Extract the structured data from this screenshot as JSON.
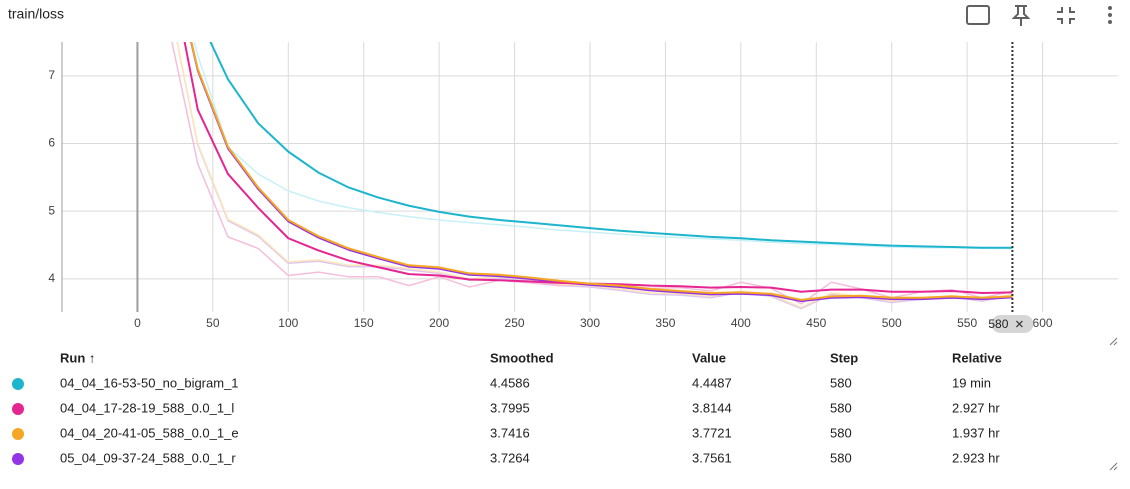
{
  "title": "train/loss",
  "chart_data": {
    "type": "line",
    "x": [
      20,
      40,
      60,
      80,
      100,
      120,
      140,
      160,
      180,
      200,
      220,
      240,
      260,
      280,
      300,
      320,
      340,
      360,
      380,
      400,
      420,
      440,
      460,
      480,
      500,
      520,
      540,
      560,
      580
    ],
    "xlim": [
      -50,
      650
    ],
    "xticks": [
      0,
      50,
      100,
      150,
      200,
      250,
      300,
      350,
      400,
      450,
      500,
      550,
      600
    ],
    "ylim": [
      3.51,
      7.5
    ],
    "yticks": [
      4,
      5,
      6,
      7
    ],
    "grid": true,
    "hover_step": 580,
    "series": [
      {
        "name": "05_04_09-37-24_588_0.0_1_r",
        "color": "#9334e6",
        "raw_color": "#dcc6f2",
        "values": [
          9.0,
          7.08,
          5.93,
          5.33,
          4.85,
          4.61,
          4.43,
          4.3,
          4.18,
          4.15,
          4.06,
          4.04,
          4.0,
          3.95,
          3.91,
          3.88,
          3.83,
          3.8,
          3.77,
          3.78,
          3.76,
          3.67,
          3.72,
          3.73,
          3.7,
          3.7,
          3.72,
          3.7,
          3.7264
        ],
        "raw_values": [
          8.2,
          5.98,
          4.86,
          4.63,
          4.23,
          4.26,
          4.18,
          4.18,
          4.13,
          4.08,
          3.98,
          4.01,
          3.97,
          3.9,
          3.88,
          3.83,
          3.77,
          3.76,
          3.72,
          3.8,
          3.74,
          3.56,
          3.77,
          3.72,
          3.65,
          3.7,
          3.73,
          3.67,
          3.7561
        ]
      },
      {
        "name": "04_04_16-53-50_no_bigram_1",
        "color": "#1cb5cd",
        "raw_color": "#c8f0f7",
        "values": [
          9.5,
          7.9,
          6.95,
          6.3,
          5.88,
          5.57,
          5.35,
          5.2,
          5.08,
          4.99,
          4.92,
          4.87,
          4.83,
          4.79,
          4.75,
          4.71,
          4.68,
          4.65,
          4.62,
          4.6,
          4.57,
          4.55,
          4.53,
          4.51,
          4.49,
          4.48,
          4.47,
          4.46,
          4.4586
        ],
        "raw_values": [
          9.0,
          7.3,
          5.95,
          5.55,
          5.3,
          5.15,
          5.05,
          4.98,
          4.92,
          4.87,
          4.83,
          4.8,
          4.76,
          4.72,
          4.69,
          4.66,
          4.63,
          4.61,
          4.59,
          4.57,
          4.54,
          4.52,
          4.51,
          4.49,
          4.47,
          4.46,
          4.46,
          4.45,
          4.4487
        ]
      },
      {
        "name": "04_04_17-28-19_588_0.0_1_l",
        "color": "#e52592",
        "raw_color": "#f5bedb",
        "values": [
          8.8,
          6.5,
          5.55,
          5.05,
          4.6,
          4.42,
          4.27,
          4.17,
          4.07,
          4.05,
          3.99,
          3.98,
          3.96,
          3.94,
          3.93,
          3.92,
          3.9,
          3.89,
          3.87,
          3.88,
          3.87,
          3.81,
          3.84,
          3.84,
          3.81,
          3.81,
          3.82,
          3.79,
          3.7995
        ],
        "raw_values": [
          7.8,
          5.7,
          4.62,
          4.45,
          4.05,
          4.1,
          4.03,
          4.03,
          3.9,
          4.03,
          3.88,
          3.98,
          3.94,
          3.9,
          3.92,
          3.9,
          3.86,
          3.87,
          3.82,
          3.95,
          3.86,
          3.63,
          3.95,
          3.85,
          3.72,
          3.81,
          3.84,
          3.72,
          3.8144
        ]
      },
      {
        "name": "04_04_20-41-05_588_0.0_1_e",
        "color": "#f5a623",
        "raw_color": "#fde6b8",
        "values": [
          9.0,
          7.1,
          5.95,
          5.35,
          4.87,
          4.63,
          4.45,
          4.32,
          4.2,
          4.17,
          4.08,
          4.06,
          4.02,
          3.97,
          3.93,
          3.9,
          3.85,
          3.82,
          3.79,
          3.8,
          3.78,
          3.69,
          3.74,
          3.75,
          3.72,
          3.72,
          3.74,
          3.72,
          3.7416
        ],
        "raw_values": [
          8.2,
          6.0,
          4.88,
          4.65,
          4.25,
          4.28,
          4.2,
          4.2,
          4.15,
          4.1,
          4.0,
          4.03,
          3.99,
          3.92,
          3.9,
          3.85,
          3.79,
          3.78,
          3.74,
          3.82,
          3.76,
          3.58,
          3.79,
          3.74,
          3.67,
          3.72,
          3.75,
          3.69,
          3.7721
        ]
      }
    ]
  },
  "table": {
    "columns": [
      "Run ↑",
      "Smoothed",
      "Value",
      "Step",
      "Relative"
    ],
    "rows": [
      {
        "series": 1,
        "cells": [
          "4.4586",
          "4.4487",
          "580",
          "19 min"
        ]
      },
      {
        "series": 2,
        "cells": [
          "3.7995",
          "3.8144",
          "580",
          "2.927 hr"
        ]
      },
      {
        "series": 3,
        "cells": [
          "3.7416",
          "3.7721",
          "580",
          "1.937 hr"
        ]
      },
      {
        "series": 0,
        "cells": [
          "3.7264",
          "3.7561",
          "580",
          "2.923 hr"
        ]
      }
    ]
  }
}
